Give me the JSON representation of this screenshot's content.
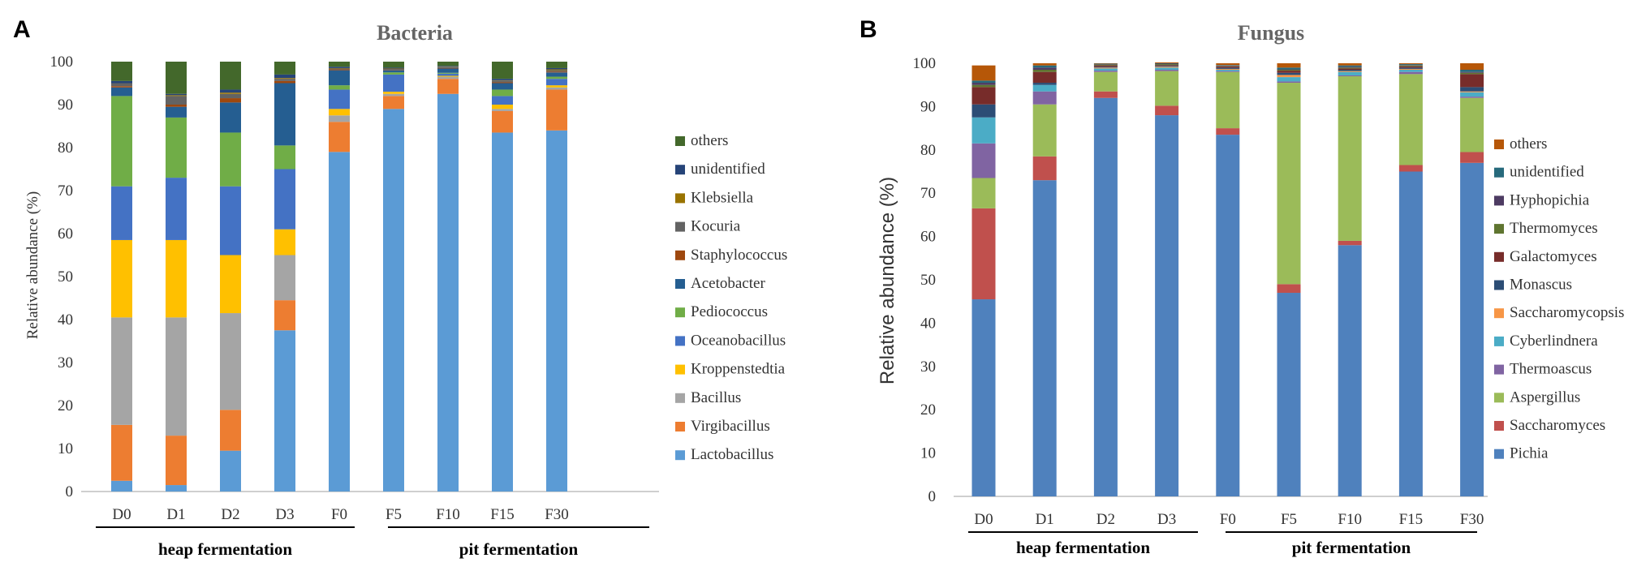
{
  "panels": [
    {
      "letter": "A",
      "chart_data": {
        "type": "bar",
        "stacked": true,
        "title": "Bacteria",
        "xlabel": "",
        "ylabel": "Relative abundance (%)",
        "ylim": [
          0,
          100
        ],
        "yticks": [
          0,
          10,
          20,
          30,
          40,
          50,
          60,
          70,
          80,
          90,
          100
        ],
        "categories": [
          "D0",
          "D1",
          "D2",
          "D3",
          "F0",
          "F5",
          "F10",
          "F15",
          "F30"
        ],
        "groups": [
          {
            "label": "heap fermentation",
            "from": "D0",
            "to": "D3"
          },
          {
            "label": "pit fermentation",
            "from": "F0",
            "to": "F30"
          }
        ],
        "series": [
          {
            "name": "Lactobacillus",
            "color": "#5b9bd5",
            "values": [
              2.5,
              1.5,
              9.5,
              37.5,
              79,
              89,
              92.5,
              83.5,
              84
            ]
          },
          {
            "name": "Virgibacillus",
            "color": "#ed7d31",
            "values": [
              13,
              11.5,
              9.5,
              7,
              7,
              3,
              3.5,
              5,
              9.5
            ]
          },
          {
            "name": "Bacillus",
            "color": "#a5a5a5",
            "values": [
              25,
              27.5,
              22.5,
              10.5,
              1.5,
              0.5,
              0.5,
              0.5,
              0.5
            ]
          },
          {
            "name": "Kroppenstedtia",
            "color": "#ffc000",
            "values": [
              18,
              18,
              13.5,
              6,
              1.5,
              0.5,
              0.2,
              1,
              0.5
            ]
          },
          {
            "name": "Oceanobacillus",
            "color": "#4472c4",
            "values": [
              12.5,
              14.5,
              16,
              14,
              4.5,
              4,
              0.5,
              2,
              1.5
            ]
          },
          {
            "name": "Pediococcus",
            "color": "#70ad47",
            "values": [
              21,
              14,
              12.5,
              5.5,
              1,
              0.5,
              0.2,
              1.5,
              0.5
            ]
          },
          {
            "name": "Acetobacter",
            "color": "#255e91",
            "values": [
              2,
              2.5,
              7,
              14.5,
              3.5,
              0.5,
              1,
              1.5,
              1
            ]
          },
          {
            "name": "Staphylococcus",
            "color": "#9e480e",
            "values": [
              0.3,
              0.5,
              1,
              0.5,
              0.2,
              0.1,
              0.1,
              0.2,
              0.2
            ]
          },
          {
            "name": "Kocuria",
            "color": "#636363",
            "values": [
              0.7,
              2,
              1,
              0.5,
              0.2,
              0.2,
              0.2,
              0.3,
              0.3
            ]
          },
          {
            "name": "Klebsiella",
            "color": "#997300",
            "values": [
              0,
              0.2,
              0.3,
              0.2,
              0.1,
              0.1,
              0.1,
              0.1,
              0.2
            ]
          },
          {
            "name": "unidentified",
            "color": "#264478",
            "values": [
              0.5,
              0.3,
              0.7,
              0.8,
              0.3,
              0.2,
              0.2,
              0.4,
              0.3
            ]
          },
          {
            "name": "others",
            "color": "#43682b",
            "values": [
              4.5,
              7.5,
              6.5,
              3,
              1.2,
              1.4,
              1,
              4,
              1.5
            ]
          }
        ]
      }
    },
    {
      "letter": "B",
      "chart_data": {
        "type": "bar",
        "stacked": true,
        "title": "Fungus",
        "xlabel": "",
        "ylabel": "Relative abundance (%)",
        "ylim": [
          0,
          100
        ],
        "yticks": [
          0,
          10,
          20,
          30,
          40,
          50,
          60,
          70,
          80,
          90,
          100
        ],
        "categories": [
          "D0",
          "D1",
          "D2",
          "D3",
          "F0",
          "F5",
          "F10",
          "F15",
          "F30"
        ],
        "groups": [
          {
            "label": "heap fermentation",
            "from": "D0",
            "to": "D3"
          },
          {
            "label": "pit fermentation",
            "from": "F0",
            "to": "F30"
          }
        ],
        "series": [
          {
            "name": "Pichia",
            "color": "#4f81bd",
            "values": [
              45.5,
              73,
              92,
              88,
              83.5,
              47,
              58,
              75,
              77
            ]
          },
          {
            "name": "Saccharomyces",
            "color": "#c0504d",
            "values": [
              21,
              5.5,
              1.5,
              2.2,
              1.5,
              2,
              1,
              1.5,
              2.5
            ]
          },
          {
            "name": "Aspergillus",
            "color": "#9bbb59",
            "values": [
              7,
              12,
              4.5,
              8,
              13,
              46.5,
              38,
              21,
              12.5
            ]
          },
          {
            "name": "Thermoascus",
            "color": "#8064a2",
            "values": [
              8,
              3,
              0.3,
              0.3,
              0.2,
              0.3,
              0.2,
              0.5,
              0.3
            ]
          },
          {
            "name": "Cyberlindnera",
            "color": "#4bacc6",
            "values": [
              6,
              1.5,
              0.5,
              0.5,
              0.3,
              1,
              0.8,
              0.5,
              1
            ]
          },
          {
            "name": "Saccharomycopsis",
            "color": "#f79646",
            "values": [
              0,
              0,
              0.2,
              0.2,
              0.2,
              0.5,
              0.2,
              0.2,
              0.2
            ]
          },
          {
            "name": "Monascus",
            "color": "#2c4d75",
            "values": [
              3,
              0.5,
              0.2,
              0.2,
              0.3,
              0.5,
              0.3,
              0.3,
              1
            ]
          },
          {
            "name": "Galactomyces",
            "color": "#772c2a",
            "values": [
              4,
              2.5,
              0.3,
              0.2,
              0.3,
              0.5,
              0.3,
              0.3,
              3
            ]
          },
          {
            "name": "Thermomyces",
            "color": "#5f7530",
            "values": [
              0.5,
              0.5,
              0.2,
              0.2,
              0.1,
              0.2,
              0.2,
              0.2,
              0.3
            ]
          },
          {
            "name": "Hyphopichia",
            "color": "#4d3b62",
            "values": [
              0.5,
              0.5,
              0.1,
              0.1,
              0.1,
              0.1,
              0.2,
              0.1,
              0.2
            ]
          },
          {
            "name": "unidentified",
            "color": "#276a7c",
            "values": [
              0.5,
              0.5,
              0.1,
              0.1,
              0.1,
              0.4,
              0.3,
              0.2,
              0.5
            ]
          },
          {
            "name": "others",
            "color": "#b65708",
            "values": [
              3.5,
              0.5,
              0.1,
              0.2,
              0.4,
              1,
              0.5,
              0.2,
              1.5
            ]
          }
        ]
      }
    }
  ]
}
